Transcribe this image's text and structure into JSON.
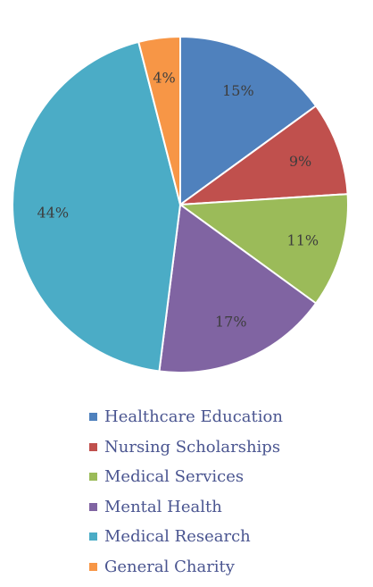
{
  "chart_data": {
    "type": "pie",
    "title": "",
    "categories": [
      "Healthcare Education",
      "Nursing Scholarships",
      "Medical Services",
      "Mental Health",
      "Medical Research",
      "General Charity"
    ],
    "values": [
      15,
      9,
      11,
      17,
      44,
      4
    ],
    "data_labels": [
      "15%",
      "9%",
      "11%",
      "17%",
      "44%",
      "4%"
    ],
    "colors": [
      "#4f81bd",
      "#c0504d",
      "#9bbb59",
      "#8064a2",
      "#4bacc6",
      "#f79646"
    ],
    "start_angle": "12 o'clock",
    "direction": "clockwise",
    "legend_position": "bottom"
  }
}
